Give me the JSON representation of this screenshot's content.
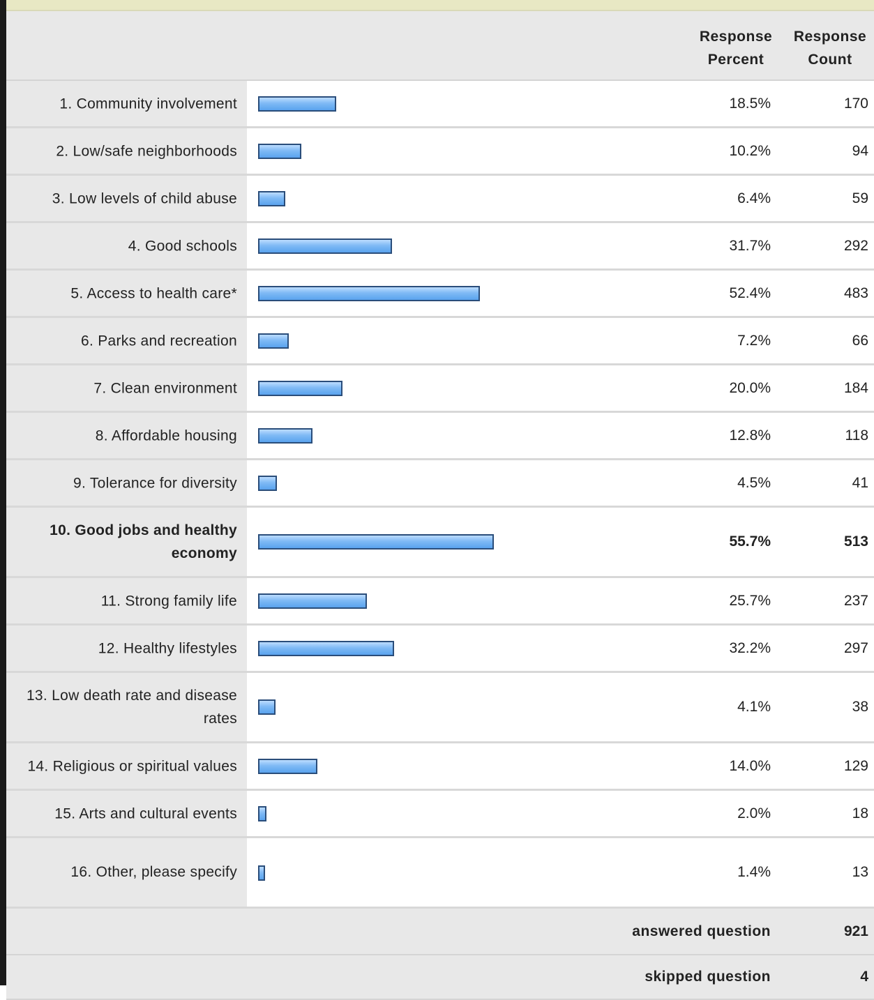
{
  "chart_data": {
    "type": "bar",
    "orientation": "horizontal",
    "header": {
      "percent": "Response Percent",
      "count": "Response Count"
    },
    "rows": [
      {
        "label": "1.  Community involvement",
        "percent": 18.5,
        "percent_text": "18.5%",
        "count": "170"
      },
      {
        "label": "2.  Low/safe neighborhoods",
        "percent": 10.2,
        "percent_text": "10.2%",
        "count": "94"
      },
      {
        "label": "3.  Low levels of child abuse",
        "percent": 6.4,
        "percent_text": "6.4%",
        "count": "59"
      },
      {
        "label": "4.  Good schools",
        "percent": 31.7,
        "percent_text": "31.7%",
        "count": "292"
      },
      {
        "label": "5.  Access to health care*",
        "percent": 52.4,
        "percent_text": "52.4%",
        "count": "483"
      },
      {
        "label": "6.  Parks and recreation",
        "percent": 7.2,
        "percent_text": "7.2%",
        "count": "66"
      },
      {
        "label": "7.  Clean environment",
        "percent": 20.0,
        "percent_text": "20.0%",
        "count": "184"
      },
      {
        "label": "8.  Affordable housing",
        "percent": 12.8,
        "percent_text": "12.8%",
        "count": "118"
      },
      {
        "label": "9.  Tolerance for diversity",
        "percent": 4.5,
        "percent_text": "4.5%",
        "count": "41"
      },
      {
        "label": "10.  Good jobs and healthy economy",
        "percent": 55.7,
        "percent_text": "55.7%",
        "count": "513",
        "bold": true
      },
      {
        "label": "11.  Strong family life",
        "percent": 25.7,
        "percent_text": "25.7%",
        "count": "237"
      },
      {
        "label": "12.  Healthy lifestyles",
        "percent": 32.2,
        "percent_text": "32.2%",
        "count": "297"
      },
      {
        "label": "13.  Low death rate and disease rates",
        "percent": 4.1,
        "percent_text": "4.1%",
        "count": "38"
      },
      {
        "label": "14.  Religious or spiritual values",
        "percent": 14.0,
        "percent_text": "14.0%",
        "count": "129"
      },
      {
        "label": "15.  Arts and cultural events",
        "percent": 2.0,
        "percent_text": "2.0%",
        "count": "18"
      },
      {
        "label": "16.  Other, please specify",
        "percent": 1.4,
        "percent_text": "1.4%",
        "count": "13"
      }
    ],
    "footer": [
      {
        "label": "answered question",
        "value": "921"
      },
      {
        "label": "skipped question",
        "value": "4"
      }
    ],
    "bar_color": "#7fbaf5",
    "bar_border_color": "#2a4d7a"
  }
}
